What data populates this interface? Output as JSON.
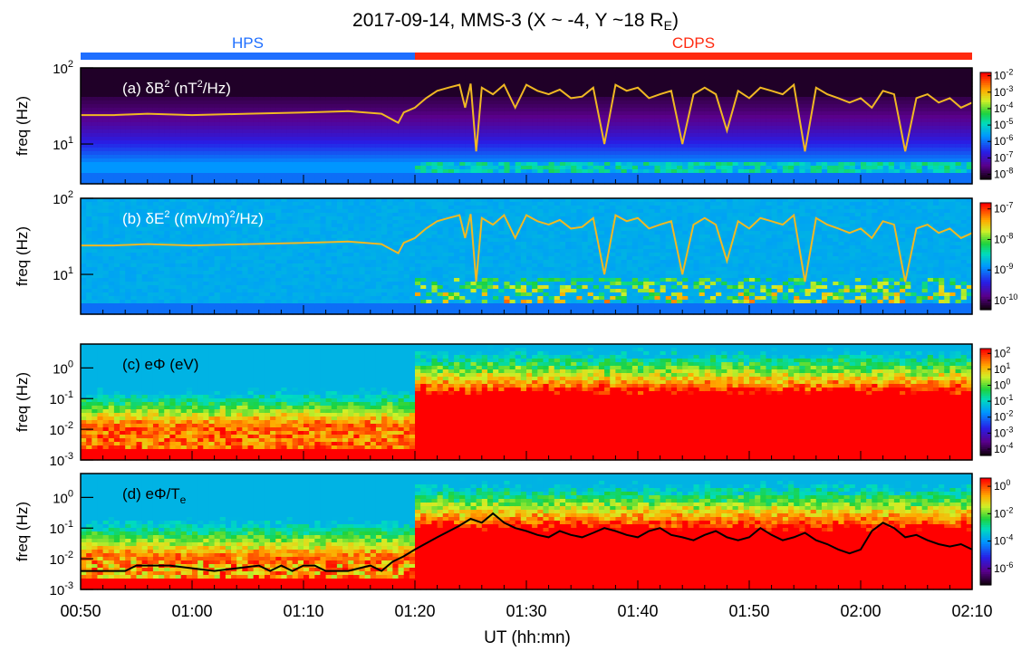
{
  "figure": {
    "title": "2017-09-14, MMS-3 (X ~ -4, Y ~18 R",
    "title_sub": "E",
    "title_close": ")",
    "xlabel": "UT (hh:mn)",
    "x_ticks": [
      "00:50",
      "01:00",
      "01:10",
      "01:20",
      "01:30",
      "01:40",
      "01:50",
      "02:00",
      "02:10"
    ],
    "x_range_minutes": [
      50,
      130
    ],
    "regions": [
      {
        "label": "HPS",
        "start_min": 50,
        "end_min": 80,
        "color": "#1f6fff"
      },
      {
        "label": "CDPS",
        "start_min": 80,
        "end_min": 130,
        "color": "#ff2a10"
      }
    ]
  },
  "chart_data": [
    {
      "type": "heatmap",
      "panel": "a",
      "label_letter": "(a)",
      "label_qty": "δB",
      "label_sup": "2",
      "label_unit_pre": " (nT",
      "label_unit_sup": "2",
      "label_unit_post": "/Hz)",
      "ylabel": "freq (Hz)",
      "y_scale": "log",
      "y_range": [
        3,
        100
      ],
      "y_ticks": [
        "10",
        "10"
      ],
      "y_tick_exps": [
        "1",
        "2"
      ],
      "colorbar_ticks": [
        "10",
        "10",
        "10",
        "10",
        "10",
        "10",
        "10"
      ],
      "colorbar_exps": [
        "-2",
        "-3",
        "-4",
        "-5",
        "-6",
        "-7",
        "-8"
      ],
      "colorbar_range_exp": [
        -8.3,
        -1.8
      ],
      "overlay_line": {
        "color": "#f0b823",
        "x_min": [
          50,
          53,
          56,
          60,
          65,
          70,
          74,
          77,
          78.5,
          79,
          80,
          81,
          82,
          83,
          84,
          84.5,
          85,
          85.5,
          86,
          87,
          88,
          89,
          90,
          91,
          92,
          93,
          94,
          95,
          96,
          97,
          98,
          99,
          100,
          101,
          102,
          103,
          104,
          105,
          106,
          107,
          108,
          109,
          110,
          111,
          112,
          113,
          114,
          115,
          116,
          117,
          118,
          119,
          120,
          121,
          122,
          123,
          124,
          125,
          126,
          127,
          128,
          129,
          130
        ],
        "y_hz": [
          24,
          24,
          25,
          24,
          25,
          26,
          27,
          25,
          19,
          26,
          30,
          40,
          50,
          55,
          60,
          30,
          62,
          8,
          55,
          45,
          60,
          30,
          60,
          50,
          45,
          52,
          40,
          42,
          55,
          10,
          60,
          50,
          55,
          40,
          45,
          50,
          10,
          45,
          55,
          45,
          15,
          50,
          40,
          55,
          50,
          45,
          60,
          8,
          55,
          45,
          40,
          35,
          40,
          30,
          50,
          45,
          8,
          40,
          45,
          35,
          40,
          30,
          35
        ]
      }
    },
    {
      "type": "heatmap",
      "panel": "b",
      "label_letter": "(b)",
      "label_qty": "δE",
      "label_sup": "2",
      "label_unit_pre": " ((mV/m)",
      "label_unit_sup": "2",
      "label_unit_post": "/Hz)",
      "ylabel": "freq (Hz)",
      "y_scale": "log",
      "y_range": [
        3,
        100
      ],
      "y_ticks": [
        "10",
        "10"
      ],
      "y_tick_exps": [
        "1",
        "2"
      ],
      "colorbar_ticks": [
        "10",
        "10",
        "10",
        "10"
      ],
      "colorbar_exps": [
        "-7",
        "-8",
        "-9",
        "-10"
      ],
      "colorbar_range_exp": [
        -10.3,
        -6.8
      ],
      "overlay_line": {
        "color": "#f0b823",
        "x_min": [
          50,
          53,
          56,
          60,
          65,
          70,
          74,
          77,
          78.5,
          79,
          80,
          81,
          82,
          83,
          84,
          84.5,
          85,
          85.5,
          86,
          87,
          88,
          89,
          90,
          91,
          92,
          93,
          94,
          95,
          96,
          97,
          98,
          99,
          100,
          101,
          102,
          103,
          104,
          105,
          106,
          107,
          108,
          109,
          110,
          111,
          112,
          113,
          114,
          115,
          116,
          117,
          118,
          119,
          120,
          121,
          122,
          123,
          124,
          125,
          126,
          127,
          128,
          129,
          130
        ],
        "y_hz": [
          24,
          24,
          25,
          24,
          25,
          26,
          27,
          25,
          19,
          26,
          30,
          40,
          50,
          55,
          60,
          30,
          62,
          8,
          55,
          45,
          60,
          30,
          60,
          50,
          45,
          52,
          40,
          42,
          55,
          10,
          60,
          50,
          55,
          40,
          45,
          50,
          10,
          45,
          55,
          45,
          15,
          50,
          40,
          55,
          50,
          45,
          60,
          8,
          55,
          45,
          40,
          35,
          40,
          30,
          50,
          45,
          8,
          40,
          45,
          35,
          40,
          30,
          35
        ]
      }
    },
    {
      "type": "heatmap",
      "panel": "c",
      "label_letter": "(c)",
      "label_qty": "eΦ (eV)",
      "ylabel": "freq (Hz)",
      "y_scale": "log",
      "y_range": [
        0.001,
        6
      ],
      "y_ticks": [
        "10",
        "10",
        "10",
        "10"
      ],
      "y_tick_exps": [
        "-3",
        "-2",
        "-1",
        "0"
      ],
      "colorbar_ticks": [
        "10",
        "10",
        "10",
        "10",
        "10",
        "10",
        "10"
      ],
      "colorbar_exps": [
        "2",
        "1",
        "0",
        "-1",
        "-2",
        "-3",
        "-4"
      ],
      "colorbar_range_exp": [
        -4.4,
        2.3
      ]
    },
    {
      "type": "heatmap",
      "panel": "d",
      "label_letter": "(d)",
      "label_qty": "eΦ/T",
      "label_sub": "e",
      "ylabel": "freq (Hz)",
      "y_scale": "log",
      "y_range": [
        0.001,
        6
      ],
      "y_ticks": [
        "10",
        "10",
        "10",
        "10"
      ],
      "y_tick_exps": [
        "-3",
        "-2",
        "-1",
        "0"
      ],
      "colorbar_ticks": [
        "10",
        "10",
        "10",
        "10"
      ],
      "colorbar_exps": [
        "0",
        "-2",
        "-4",
        "-6"
      ],
      "colorbar_range_exp": [
        -7.2,
        0.6
      ],
      "overlay_line": {
        "color": "#000000",
        "x_min": [
          50,
          54,
          55,
          58,
          62,
          66,
          67,
          68,
          69,
          70,
          71,
          72,
          74,
          76,
          77,
          78,
          79,
          80,
          82,
          84,
          85,
          86,
          87,
          88,
          89,
          90,
          91,
          92,
          93,
          94,
          95,
          96,
          97,
          98,
          99,
          100,
          101,
          102,
          103,
          104,
          105,
          106,
          107,
          108,
          109,
          110,
          111,
          112,
          113,
          114,
          115,
          116,
          117,
          118,
          119,
          120,
          121,
          122,
          123,
          124,
          125,
          126,
          127,
          128,
          129,
          130
        ],
        "y_hz": [
          0.004,
          0.004,
          0.006,
          0.006,
          0.004,
          0.006,
          0.004,
          0.006,
          0.004,
          0.006,
          0.006,
          0.004,
          0.004,
          0.006,
          0.004,
          0.008,
          0.012,
          0.02,
          0.05,
          0.12,
          0.2,
          0.15,
          0.3,
          0.15,
          0.1,
          0.08,
          0.06,
          0.05,
          0.08,
          0.06,
          0.05,
          0.07,
          0.1,
          0.08,
          0.06,
          0.05,
          0.08,
          0.1,
          0.06,
          0.05,
          0.04,
          0.06,
          0.08,
          0.05,
          0.04,
          0.05,
          0.1,
          0.06,
          0.04,
          0.05,
          0.07,
          0.04,
          0.03,
          0.02,
          0.015,
          0.02,
          0.08,
          0.15,
          0.1,
          0.05,
          0.06,
          0.04,
          0.03,
          0.025,
          0.03,
          0.02
        ]
      }
    }
  ]
}
